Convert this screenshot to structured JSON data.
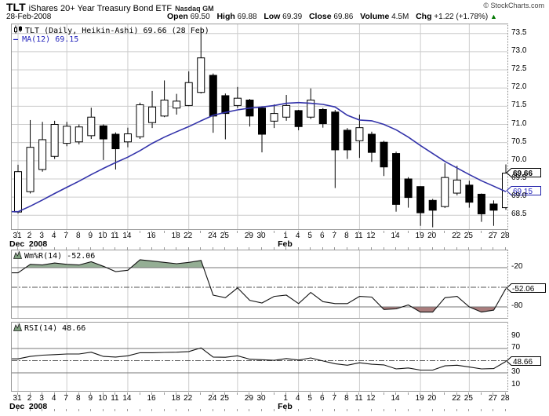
{
  "header": {
    "symbol": "TLT",
    "name": "iShares 20+ Year Treasury Bond ETF",
    "exchange": "Nasdaq GM",
    "date": "28-Feb-2008",
    "copyright": "© StockCharts.com",
    "quote": {
      "open_label": "Open",
      "open": "69.50",
      "high_label": "High",
      "high": "69.88",
      "low_label": "Low",
      "low": "69.39",
      "close_label": "Close",
      "close": "69.86",
      "volume_label": "Volume",
      "volume": "4.5M",
      "chg_label": "Chg",
      "chg": "+1.22 (+1.78%)",
      "chg_arrow": "▲"
    }
  },
  "colors": {
    "ma_line": "#3333AA",
    "ma_text": "#2222BB",
    "candle_up_fill": "#FFFFFF",
    "candle_down_fill": "#000000",
    "candle_outline": "#000000",
    "grid": "#CCCCCC",
    "panel_border": "#999999",
    "level_line": "#777777",
    "dashdot_line": "#555555",
    "indicator_line": "#111111",
    "wmr_fill_above": "#94AE94",
    "wmr_fill_below": "#AA7D7D",
    "chg_up_green": "#007700"
  },
  "main_chart": {
    "legend": "TLT (Daily, Heikin-Ashi) 69.66 (28 Feb)",
    "ma_dash": "—",
    "ma_legend": "MA(12) 69.15",
    "price_badge": "69.66",
    "ma_badge": "69.15"
  },
  "wmr_panel": {
    "legend": "Wm%R(14) -52.06",
    "badge": "-52.06",
    "level_labels": [
      "-20",
      "-80"
    ]
  },
  "rsi_panel": {
    "legend": "RSI(14) 48.66",
    "badge": "48.66",
    "scale_labels": [
      "90",
      "70",
      "30",
      "10"
    ]
  },
  "x_axis": {
    "day_labels": [
      "31",
      "2",
      "3",
      "4",
      "7",
      "8",
      "9",
      "10",
      "11",
      "14",
      "",
      "16",
      "",
      "18",
      "22",
      "",
      "24",
      "25",
      "",
      "29",
      "30",
      "",
      "1",
      "4",
      "5",
      "6",
      "7",
      "8",
      "11",
      "12",
      "",
      "14",
      "",
      "19",
      "20",
      "",
      "22",
      "25",
      "",
      "27",
      "28"
    ],
    "months": [
      {
        "i": 0,
        "label": "Dec"
      },
      {
        "i": 1.6,
        "label": "2008"
      },
      {
        "i": 22,
        "label": "Feb"
      }
    ],
    "week_start_indices": [
      0,
      4,
      9,
      14,
      18,
      23,
      28,
      33,
      37
    ]
  },
  "chart_data": [
    {
      "type": "candlestick",
      "title": "TLT (Daily, Heikin-Ashi)",
      "last_value": "69.66 (28 Feb)",
      "categories": [
        "Dec 31",
        "Jan 2",
        "Jan 3",
        "Jan 4",
        "Jan 7",
        "Jan 8",
        "Jan 9",
        "Jan 10",
        "Jan 11",
        "Jan 14",
        "Jan 15",
        "Jan 16",
        "Jan 17",
        "Jan 18",
        "Jan 22",
        "Jan 23",
        "Jan 24",
        "Jan 25",
        "Jan 28",
        "Jan 29",
        "Jan 30",
        "Jan 31",
        "Feb 1",
        "Feb 4",
        "Feb 5",
        "Feb 6",
        "Feb 7",
        "Feb 8",
        "Feb 11",
        "Feb 12",
        "Feb 13",
        "Feb 14",
        "Feb 15",
        "Feb 19",
        "Feb 20",
        "Feb 21",
        "Feb 22",
        "Feb 25",
        "Feb 26",
        "Feb 27",
        "Feb 28"
      ],
      "ohlc": [
        [
          68.59,
          69.89,
          68.55,
          69.7
        ],
        [
          69.15,
          71.12,
          69.1,
          70.37
        ],
        [
          69.76,
          71.07,
          69.7,
          70.58
        ],
        [
          70.12,
          71.1,
          70.05,
          71.0
        ],
        [
          70.48,
          71.07,
          70.4,
          70.95
        ],
        [
          70.52,
          71.0,
          70.45,
          70.93
        ],
        [
          70.69,
          71.46,
          70.6,
          71.2
        ],
        [
          70.96,
          71.0,
          70.02,
          70.6
        ],
        [
          70.73,
          70.78,
          69.76,
          70.33
        ],
        [
          70.52,
          70.91,
          70.37,
          70.74
        ],
        [
          70.66,
          71.6,
          70.6,
          71.54
        ],
        [
          71.05,
          71.92,
          70.9,
          71.48
        ],
        [
          71.23,
          72.21,
          71.2,
          71.67
        ],
        [
          71.45,
          71.84,
          71.27,
          71.64
        ],
        [
          71.52,
          72.46,
          71.5,
          72.15
        ],
        [
          71.88,
          73.65,
          71.85,
          72.83
        ],
        [
          72.35,
          72.4,
          70.77,
          71.23
        ],
        [
          71.79,
          71.85,
          70.59,
          71.3
        ],
        [
          71.52,
          72.03,
          71.45,
          71.72
        ],
        [
          71.67,
          71.7,
          70.94,
          71.23
        ],
        [
          71.45,
          71.5,
          70.23,
          70.73
        ],
        [
          71.09,
          71.55,
          70.9,
          71.3
        ],
        [
          71.2,
          71.81,
          71.1,
          71.52
        ],
        [
          71.38,
          71.4,
          70.84,
          70.94
        ],
        [
          71.2,
          71.99,
          71.15,
          71.67
        ],
        [
          71.41,
          71.45,
          70.91,
          71.02
        ],
        [
          71.34,
          71.4,
          69.25,
          70.3
        ],
        [
          70.84,
          70.9,
          70.05,
          70.3
        ],
        [
          70.55,
          71.27,
          70.08,
          70.91
        ],
        [
          70.73,
          70.8,
          69.97,
          70.23
        ],
        [
          70.51,
          70.55,
          69.58,
          69.83
        ],
        [
          70.2,
          70.25,
          68.6,
          68.8
        ],
        [
          69.5,
          69.55,
          68.71,
          68.99
        ],
        [
          69.29,
          69.3,
          68.21,
          68.57
        ],
        [
          68.91,
          68.95,
          68.17,
          68.64
        ],
        [
          68.74,
          69.93,
          68.7,
          69.54
        ],
        [
          69.11,
          69.86,
          69.05,
          69.47
        ],
        [
          69.33,
          69.45,
          68.71,
          68.86
        ],
        [
          69.08,
          69.1,
          68.32,
          68.54
        ],
        [
          68.81,
          68.91,
          68.21,
          68.64
        ],
        [
          68.71,
          69.9,
          68.65,
          69.66
        ]
      ],
      "overlays": [
        {
          "name": "MA(12)",
          "values": [
            68.6,
            68.75,
            68.92,
            69.1,
            69.27,
            69.44,
            69.62,
            69.79,
            69.95,
            70.1,
            70.28,
            70.48,
            70.65,
            70.8,
            70.94,
            71.1,
            71.25,
            71.33,
            71.4,
            71.45,
            71.48,
            71.52,
            71.58,
            71.6,
            71.58,
            71.55,
            71.48,
            71.25,
            71.12,
            71.1,
            71.0,
            70.85,
            70.65,
            70.42,
            70.2,
            69.98,
            69.8,
            69.62,
            69.45,
            69.3,
            69.15
          ]
        }
      ],
      "y_ticks": [
        73.5,
        73.0,
        72.5,
        72.0,
        71.5,
        71.0,
        70.5,
        70.0,
        69.5,
        69.0,
        68.5
      ],
      "ylim": [
        68.1,
        73.75
      ],
      "grid": true
    },
    {
      "type": "line",
      "title": "Wm%R(14)",
      "last_value": -52.06,
      "values": [
        -28,
        -15,
        -16,
        -13,
        -15,
        -16,
        -11,
        -18,
        -26,
        -24,
        -8,
        -10,
        -12,
        -14,
        -12,
        -9,
        -62,
        -66,
        -51,
        -70,
        -74,
        -64,
        -62,
        -75,
        -58,
        -72,
        -75,
        -75,
        -64,
        -65,
        -84,
        -83,
        -77,
        -88,
        -88,
        -66,
        -64,
        -80,
        -88,
        -85,
        -52.06
      ],
      "levels": [
        -20,
        -50,
        -80
      ],
      "ylim": [
        -100,
        0
      ],
      "fill_above_level": -20,
      "fill_below_level": -80
    },
    {
      "type": "line",
      "title": "RSI(14)",
      "last_value": 48.66,
      "values": [
        53,
        57,
        59,
        60,
        61,
        61,
        64,
        57,
        56,
        58,
        63,
        63,
        63.5,
        64,
        65,
        71,
        56,
        55.5,
        58,
        52.5,
        51.5,
        50.5,
        53.5,
        51,
        54.5,
        49.5,
        45,
        42.5,
        46.5,
        44,
        43,
        36.5,
        38,
        34.5,
        34.5,
        41.5,
        42.5,
        39.5,
        36.5,
        37,
        48.66
      ],
      "levels": [
        70,
        50,
        30
      ],
      "ylim": [
        0,
        110
      ]
    }
  ]
}
